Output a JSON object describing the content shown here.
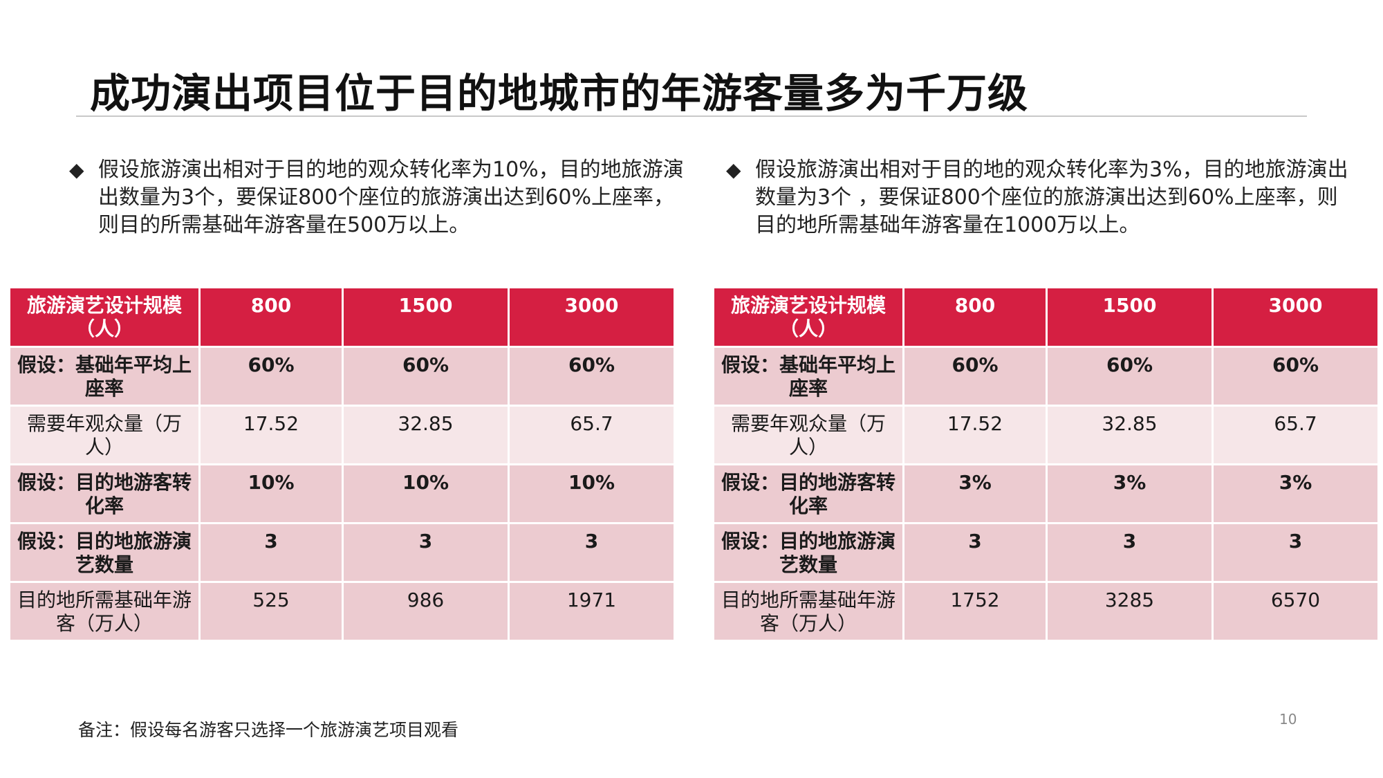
{
  "title": "成功演出项目位于目的地城市的年游客量多为千万级",
  "left": {
    "bullet_symbol": "◆",
    "bullet": "假设旅游演出相对于目的地的观众转化率为10%，目的地旅游演出数量为3个，要保证800个座位的旅游演出达到60%上座率，则目的所需基础年游客量在500万以上。",
    "header": [
      "旅游演艺设计规模（人）",
      "800",
      "1500",
      "3000"
    ],
    "rows": [
      [
        "假设：基础年平均上座率",
        "60%",
        "60%",
        "60%"
      ],
      [
        "需要年观众量（万人）",
        "17.52",
        "32.85",
        "65.7"
      ],
      [
        "假设：目的地游客转化率",
        "10%",
        "10%",
        "10%"
      ],
      [
        "假设：目的地旅游演艺数量",
        "3",
        "3",
        "3"
      ],
      [
        "目的地所需基础年游客（万人）",
        "525",
        "986",
        "1971"
      ]
    ]
  },
  "right": {
    "bullet_symbol": "◆",
    "bullet": "假设旅游演出相对于目的地的观众转化率为3%，目的地旅游演出数量为3个 ，要保证800个座位的旅游演出达到60%上座率，则目的地所需基础年游客量在1000万以上。",
    "header": [
      "旅游演艺设计规模（人）",
      "800",
      "1500",
      "3000"
    ],
    "rows": [
      [
        "假设：基础年平均上座率",
        "60%",
        "60%",
        "60%"
      ],
      [
        "需要年观众量（万人）",
        "17.52",
        "32.85",
        "65.7"
      ],
      [
        "假设：目的地游客转化率",
        "3%",
        "3%",
        "3%"
      ],
      [
        "假设：目的地旅游演艺数量",
        "3",
        "3",
        "3"
      ],
      [
        "目的地所需基础年游客（万人）",
        "1752",
        "3285",
        "6570"
      ]
    ]
  },
  "footnote": "备注：假设每名游客只选择一个旅游演艺项目观看",
  "page_number": "10",
  "colors": {
    "header_red": "#d51f42",
    "row_dark": "#eccbd0",
    "row_light": "#f6e6e8"
  }
}
